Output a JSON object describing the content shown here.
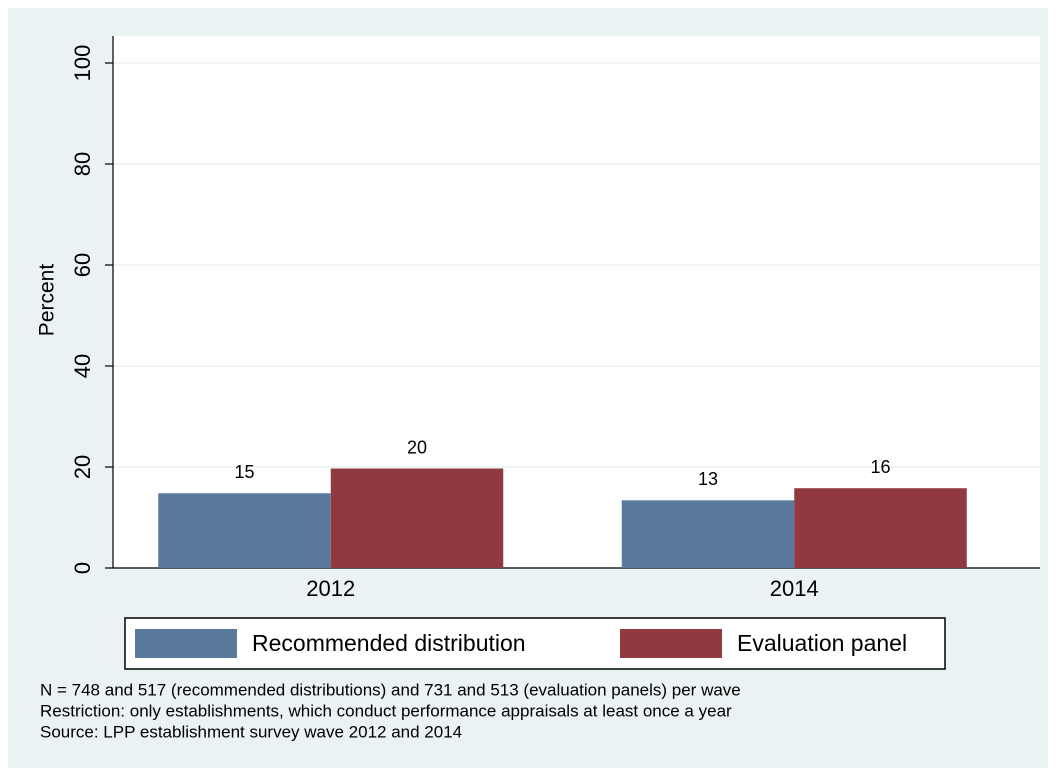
{
  "chart_data": {
    "type": "bar",
    "categories": [
      "2012",
      "2014"
    ],
    "series": [
      {
        "name": "Recommended distribution",
        "color": "#59799d",
        "values": [
          14.8,
          13.4
        ],
        "value_labels": [
          "15",
          "13"
        ]
      },
      {
        "name": "Evaluation panel",
        "color": "#903a40",
        "values": [
          19.7,
          15.8
        ],
        "value_labels": [
          "20",
          "16"
        ]
      }
    ],
    "y_label": "Percent",
    "ylim": [
      0,
      100
    ],
    "yticks": [
      0,
      20,
      40,
      60,
      80,
      100
    ],
    "grid": true,
    "legend": "bottom",
    "notes": [
      "N = 748 and 517 (recommended distributions) and 731 and 513 (evaluation panels) per wave",
      "Restriction: only establishments, which conduct performance appraisals at least once a year",
      "Source: LPP establishment survey wave 2012 and 2014"
    ]
  }
}
